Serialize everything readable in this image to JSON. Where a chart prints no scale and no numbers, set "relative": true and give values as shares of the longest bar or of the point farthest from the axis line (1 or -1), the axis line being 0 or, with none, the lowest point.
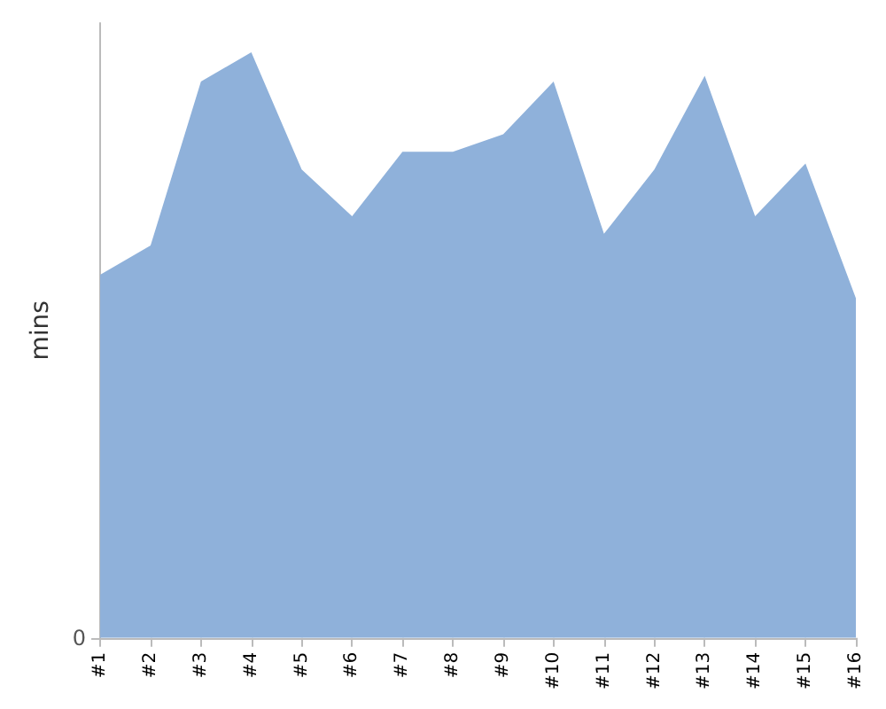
{
  "chart_data": {
    "type": "area",
    "ylabel": "mins",
    "relative": true,
    "annotations": [
      "0"
    ],
    "categories": [
      "#1",
      "#2",
      "#3",
      "#4",
      "#5",
      "#6",
      "#7",
      "#8",
      "#9",
      "#10",
      "#11",
      "#12",
      "#13",
      "#14",
      "#15",
      "#16"
    ],
    "series": [
      {
        "color": "#8fb1da",
        "values": [
          0.62,
          0.67,
          0.95,
          1,
          0.8,
          0.72,
          0.83,
          0.83,
          0.86,
          0.95,
          0.69,
          0.8,
          0.96,
          0.72,
          0.81,
          0.58
        ]
      }
    ],
    "grid": false
  }
}
